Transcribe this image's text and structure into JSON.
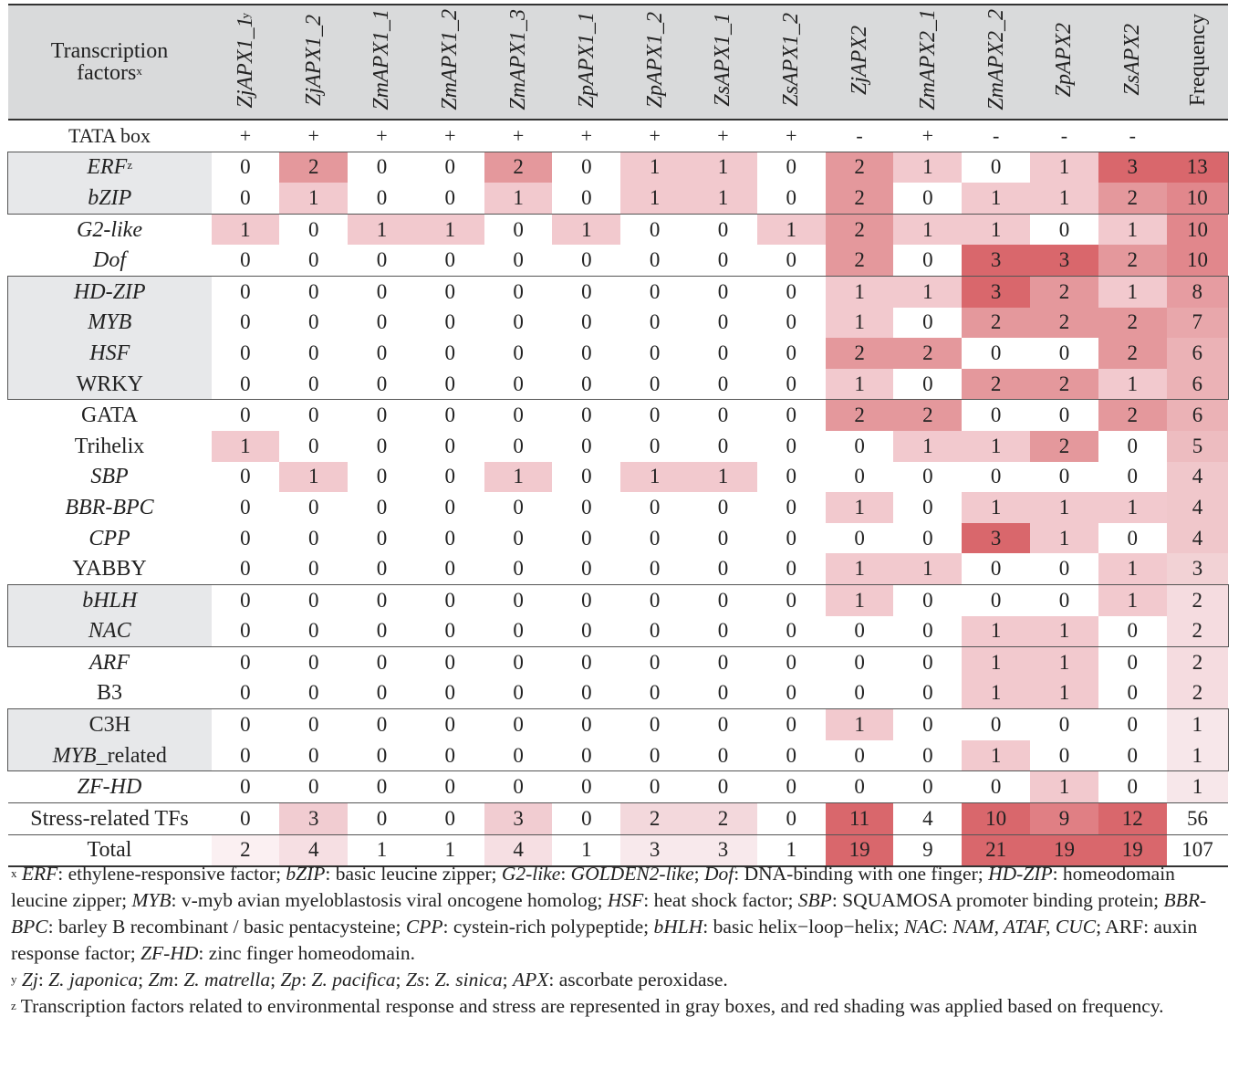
{
  "header": {
    "tf_label_line1": "Transcription",
    "tf_label_line2": "factors",
    "tf_label_sup": "x",
    "columns": [
      "ZjAPX1_1",
      "ZjAPX1_2",
      "ZmAPX1_1",
      "ZmAPX1_2",
      "ZmAPX1_3",
      "ZpAPX1_1",
      "ZpAPX1_2",
      "ZsAPX1_1",
      "ZsAPX1_2",
      "ZjAPX2",
      "ZmAPX2_1",
      "ZmAPX2_2",
      "ZpAPX2",
      "ZsAPX2"
    ],
    "first_col_sup": "y",
    "frequency": "Frequency"
  },
  "tata_row": {
    "label": "TATA box",
    "values": [
      "+",
      "+",
      "+",
      "+",
      "+",
      "+",
      "+",
      "+",
      "+",
      "-",
      "+",
      "-",
      "-",
      "-"
    ]
  },
  "rows": [
    {
      "name": "ERF",
      "sup": "z",
      "italic": true,
      "values": [
        0,
        2,
        0,
        0,
        2,
        0,
        1,
        1,
        0,
        2,
        1,
        0,
        1,
        3
      ],
      "freq": 13
    },
    {
      "name": "bZIP",
      "italic": true,
      "values": [
        0,
        1,
        0,
        0,
        1,
        0,
        1,
        1,
        0,
        2,
        0,
        1,
        1,
        2
      ],
      "freq": 10
    },
    {
      "name": "G2-like",
      "italic": true,
      "values": [
        1,
        0,
        1,
        1,
        0,
        1,
        0,
        0,
        1,
        2,
        1,
        1,
        0,
        1
      ],
      "freq": 10
    },
    {
      "name": "Dof",
      "italic": true,
      "values": [
        0,
        0,
        0,
        0,
        0,
        0,
        0,
        0,
        0,
        2,
        0,
        3,
        3,
        2
      ],
      "freq": 10
    },
    {
      "name": "HD-ZIP",
      "italic": true,
      "values": [
        0,
        0,
        0,
        0,
        0,
        0,
        0,
        0,
        0,
        1,
        1,
        3,
        2,
        1
      ],
      "freq": 8
    },
    {
      "name": "MYB",
      "italic": true,
      "values": [
        0,
        0,
        0,
        0,
        0,
        0,
        0,
        0,
        0,
        1,
        0,
        2,
        2,
        2
      ],
      "freq": 7
    },
    {
      "name": "HSF",
      "italic": true,
      "values": [
        0,
        0,
        0,
        0,
        0,
        0,
        0,
        0,
        0,
        2,
        2,
        0,
        0,
        2
      ],
      "freq": 6
    },
    {
      "name": "WRKY",
      "italic": false,
      "values": [
        0,
        0,
        0,
        0,
        0,
        0,
        0,
        0,
        0,
        1,
        0,
        2,
        2,
        1
      ],
      "freq": 6
    },
    {
      "name": "GATA",
      "italic": false,
      "values": [
        0,
        0,
        0,
        0,
        0,
        0,
        0,
        0,
        0,
        2,
        2,
        0,
        0,
        2
      ],
      "freq": 6
    },
    {
      "name": "Trihelix",
      "italic": false,
      "values": [
        1,
        0,
        0,
        0,
        0,
        0,
        0,
        0,
        0,
        0,
        1,
        1,
        2,
        0
      ],
      "freq": 5
    },
    {
      "name": "SBP",
      "italic": true,
      "values": [
        0,
        1,
        0,
        0,
        1,
        0,
        1,
        1,
        0,
        0,
        0,
        0,
        0,
        0
      ],
      "freq": 4
    },
    {
      "name": "BBR-BPC",
      "italic": true,
      "values": [
        0,
        0,
        0,
        0,
        0,
        0,
        0,
        0,
        0,
        1,
        0,
        1,
        1,
        1
      ],
      "freq": 4
    },
    {
      "name": "CPP",
      "italic": true,
      "values": [
        0,
        0,
        0,
        0,
        0,
        0,
        0,
        0,
        0,
        0,
        0,
        3,
        1,
        0
      ],
      "freq": 4
    },
    {
      "name": "YABBY",
      "italic": false,
      "values": [
        0,
        0,
        0,
        0,
        0,
        0,
        0,
        0,
        0,
        1,
        1,
        0,
        0,
        1
      ],
      "freq": 3
    },
    {
      "name": "bHLH",
      "italic": true,
      "values": [
        0,
        0,
        0,
        0,
        0,
        0,
        0,
        0,
        0,
        1,
        0,
        0,
        0,
        1
      ],
      "freq": 2
    },
    {
      "name": "NAC",
      "italic": true,
      "values": [
        0,
        0,
        0,
        0,
        0,
        0,
        0,
        0,
        0,
        0,
        0,
        1,
        1,
        0
      ],
      "freq": 2
    },
    {
      "name": "ARF",
      "italic": true,
      "values": [
        0,
        0,
        0,
        0,
        0,
        0,
        0,
        0,
        0,
        0,
        0,
        1,
        1,
        0
      ],
      "freq": 2
    },
    {
      "name": "B3",
      "italic": false,
      "values": [
        0,
        0,
        0,
        0,
        0,
        0,
        0,
        0,
        0,
        0,
        0,
        1,
        1,
        0
      ],
      "freq": 2
    },
    {
      "name": "C3H",
      "italic": false,
      "values": [
        0,
        0,
        0,
        0,
        0,
        0,
        0,
        0,
        0,
        1,
        0,
        0,
        0,
        0
      ],
      "freq": 1
    },
    {
      "name": "MYB",
      "suffix": "_related",
      "italic": true,
      "values": [
        0,
        0,
        0,
        0,
        0,
        0,
        0,
        0,
        0,
        0,
        0,
        1,
        0,
        0
      ],
      "freq": 1
    },
    {
      "name": "ZF-HD",
      "italic": true,
      "values": [
        0,
        0,
        0,
        0,
        0,
        0,
        0,
        0,
        0,
        0,
        0,
        0,
        1,
        0
      ],
      "freq": 1
    }
  ],
  "stress_row": {
    "name": "Stress-related TFs",
    "values": [
      0,
      3,
      0,
      0,
      3,
      0,
      2,
      2,
      0,
      11,
      4,
      10,
      9,
      12
    ],
    "freq": 56
  },
  "total_row": {
    "name": "Total",
    "values": [
      2,
      4,
      1,
      1,
      4,
      1,
      3,
      3,
      1,
      19,
      9,
      21,
      19,
      19
    ],
    "freq": 107
  },
  "colors": {
    "header_bg": "#d9dadb",
    "gray_box": "#e7e8ea",
    "shade1": "#f2c9ce",
    "shade2": "#e4989c",
    "shade3": "#d9676c",
    "freq_low": "#f7e7ea",
    "freq_high": "#d9676c"
  },
  "notes": {
    "x_sup": "x",
    "y_sup": "y",
    "z_sup": "z",
    "x_segments": [
      [
        "ERF",
        "i"
      ],
      [
        ": ethylene-responsive factor; ",
        "n"
      ],
      [
        "bZIP",
        "i"
      ],
      [
        ": basic leucine zipper; ",
        "n"
      ],
      [
        "G2-like",
        "i"
      ],
      [
        ": ",
        "n"
      ],
      [
        "GOLDEN2-like",
        "i"
      ],
      [
        "; ",
        "n"
      ],
      [
        "Dof",
        "i"
      ],
      [
        ": DNA-binding with one finger; ",
        "n"
      ],
      [
        "HD-ZIP",
        "i"
      ],
      [
        ": homeodomain leucine zipper; ",
        "n"
      ],
      [
        "MYB",
        "i"
      ],
      [
        ": v-myb avian myeloblastosis viral oncogene homolog; ",
        "n"
      ],
      [
        "HSF",
        "i"
      ],
      [
        ": heat shock factor; ",
        "n"
      ],
      [
        "SBP",
        "i"
      ],
      [
        ": SQUAMOSA promoter binding protein; ",
        "n"
      ],
      [
        "BBR-BPC",
        "i"
      ],
      [
        ": barley B recombinant / basic pentacysteine; ",
        "n"
      ],
      [
        "CPP",
        "i"
      ],
      [
        ": cystein-rich polypeptide; ",
        "n"
      ],
      [
        "bHLH",
        "i"
      ],
      [
        ": basic helix−loop−helix; ",
        "n"
      ],
      [
        "NAC",
        "i"
      ],
      [
        ": ",
        "n"
      ],
      [
        "NAM, ATAF, CUC",
        "i"
      ],
      [
        "; ARF: auxin response factor; ",
        "n"
      ],
      [
        "ZF-HD",
        "i"
      ],
      [
        ": zinc finger homeodomain.",
        "n"
      ]
    ],
    "y_segments": [
      [
        "Zj",
        "i"
      ],
      [
        ": ",
        "n"
      ],
      [
        "Z. japonica",
        "i"
      ],
      [
        "; ",
        "n"
      ],
      [
        "Zm",
        "i"
      ],
      [
        ": ",
        "n"
      ],
      [
        "Z. matrella",
        "i"
      ],
      [
        "; ",
        "n"
      ],
      [
        "Zp",
        "i"
      ],
      [
        ": ",
        "n"
      ],
      [
        "Z. pacifica",
        "i"
      ],
      [
        "; ",
        "n"
      ],
      [
        "Zs",
        "i"
      ],
      [
        ": ",
        "n"
      ],
      [
        "Z. sinica",
        "i"
      ],
      [
        "; ",
        "n"
      ],
      [
        "APX",
        "i"
      ],
      [
        ": ascorbate peroxidase.",
        "n"
      ]
    ],
    "z_text": "Transcription factors related to environmental response and stress are represented in gray boxes, and red shading was applied based on frequency."
  }
}
